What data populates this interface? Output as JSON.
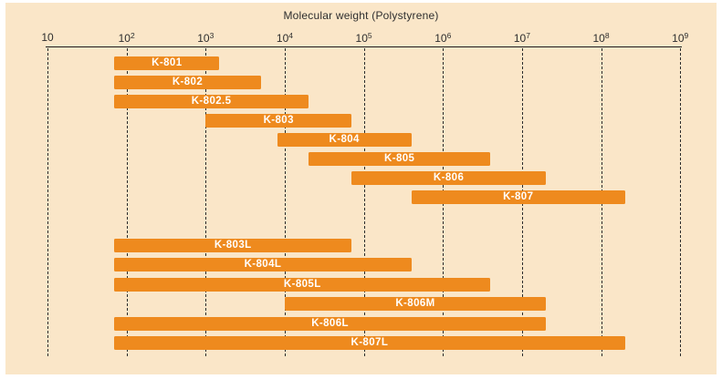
{
  "chart": {
    "title": "Molecular weight (Polystyrene)"
  },
  "chart_data": {
    "type": "bar",
    "subtype": "horizontal-range-bars",
    "title": "Molecular weight (Polystyrene)",
    "xlabel": "Molecular weight (Polystyrene)",
    "ylabel": "",
    "x_scale": "log10",
    "x_axis": {
      "min": 10,
      "max": 1000000000,
      "tick_base": "10",
      "tick_exponents": [
        1,
        2,
        3,
        4,
        5,
        6,
        7,
        8,
        9
      ]
    },
    "grid": "vertical dashed line at every decade",
    "legend": "none",
    "colors": {
      "bar": "#ee8a1e",
      "background": "#fae6c8",
      "label_text": "#ffffff",
      "axis_text": "#2e2e2e"
    },
    "groups": [
      {
        "name": "standard-columns",
        "columns": [
          {
            "name": "K-801",
            "mw_min": 70,
            "mw_max": 1500
          },
          {
            "name": "K-802",
            "mw_min": 70,
            "mw_max": 5000
          },
          {
            "name": "K-802.5",
            "mw_min": 70,
            "mw_max": 20000
          },
          {
            "name": "K-803",
            "mw_min": 1000,
            "mw_max": 70000
          },
          {
            "name": "K-804",
            "mw_min": 8000,
            "mw_max": 400000
          },
          {
            "name": "K-805",
            "mw_min": 20000,
            "mw_max": 4000000
          },
          {
            "name": "K-806",
            "mw_min": 70000,
            "mw_max": 20000000
          },
          {
            "name": "K-807",
            "mw_min": 400000,
            "mw_max": 200000000
          }
        ]
      },
      {
        "name": "linear-mixed-columns",
        "columns": [
          {
            "name": "K-803L",
            "mw_min": 70,
            "mw_max": 70000
          },
          {
            "name": "K-804L",
            "mw_min": 70,
            "mw_max": 400000
          },
          {
            "name": "K-805L",
            "mw_min": 70,
            "mw_max": 4000000
          },
          {
            "name": "K-806M",
            "mw_min": 10000,
            "mw_max": 20000000
          },
          {
            "name": "K-806L",
            "mw_min": 70,
            "mw_max": 20000000
          },
          {
            "name": "K-807L",
            "mw_min": 70,
            "mw_max": 200000000
          }
        ]
      }
    ]
  }
}
